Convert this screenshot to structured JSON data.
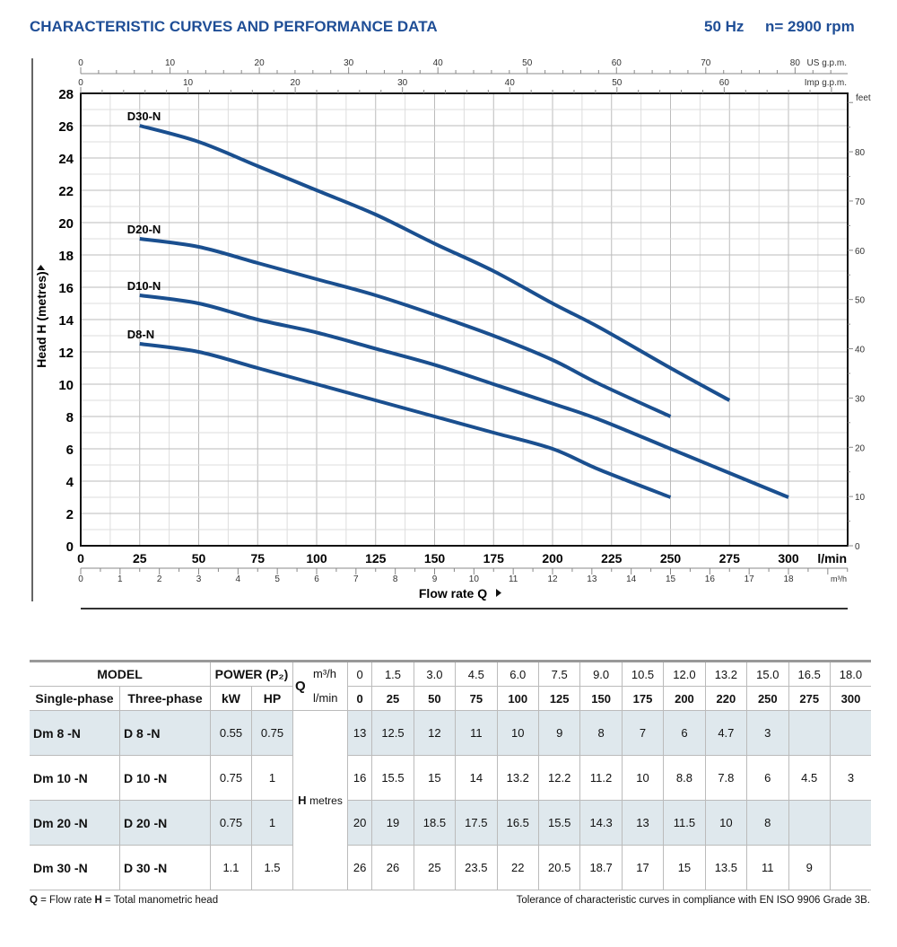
{
  "header": {
    "title": "CHARACTERISTIC CURVES AND PERFORMANCE DATA",
    "freq": "50 Hz",
    "speed": "n= 2900 rpm"
  },
  "chart_data": {
    "type": "line",
    "xlabel": "Flow rate Q",
    "ylabel": "Head H  (metres)",
    "x_unit": "l/min",
    "x2_unit": "m³/h",
    "top_unit1": "US g.p.m.",
    "top_unit2": "Imp g.p.m.",
    "right_unit": "feet",
    "xlim": [
      0,
      325
    ],
    "ylim": [
      0,
      28
    ],
    "x_ticks": [
      0,
      25,
      50,
      75,
      100,
      125,
      150,
      175,
      200,
      225,
      250,
      275,
      300
    ],
    "y_ticks": [
      0,
      2,
      4,
      6,
      8,
      10,
      12,
      14,
      16,
      18,
      20,
      22,
      24,
      26,
      28
    ],
    "m3h_ticks": [
      0,
      1,
      2,
      3,
      4,
      5,
      6,
      7,
      8,
      9,
      10,
      11,
      12,
      13,
      14,
      15,
      16,
      17,
      18
    ],
    "usgpm_ticks": [
      0,
      10,
      20,
      30,
      40,
      50,
      60,
      70,
      80
    ],
    "impgpm_ticks": [
      0,
      10,
      20,
      30,
      40,
      50,
      60
    ],
    "feet_ticks": [
      0,
      10,
      20,
      30,
      40,
      50,
      60,
      70,
      80
    ],
    "grid": true,
    "series": [
      {
        "name": "D30-N",
        "x": [
          25,
          50,
          75,
          100,
          125,
          150,
          175,
          200,
          220,
          250,
          275
        ],
        "y": [
          26,
          25,
          23.5,
          22,
          20.5,
          18.7,
          17,
          15,
          13.5,
          11,
          9
        ]
      },
      {
        "name": "D20-N",
        "x": [
          25,
          50,
          75,
          100,
          125,
          150,
          175,
          200,
          220,
          250
        ],
        "y": [
          19,
          18.5,
          17.5,
          16.5,
          15.5,
          14.3,
          13,
          11.5,
          10,
          8
        ]
      },
      {
        "name": "D10-N",
        "x": [
          25,
          50,
          75,
          100,
          125,
          150,
          175,
          200,
          220,
          250,
          275,
          300
        ],
        "y": [
          15.5,
          15,
          14,
          13.2,
          12.2,
          11.2,
          10,
          8.8,
          7.8,
          6,
          4.5,
          3
        ]
      },
      {
        "name": "D8-N",
        "x": [
          25,
          50,
          75,
          100,
          125,
          150,
          175,
          200,
          220,
          250
        ],
        "y": [
          12.5,
          12,
          11,
          10,
          9,
          8,
          7,
          6,
          4.7,
          3
        ]
      }
    ],
    "line_color": "#1a4f8f"
  },
  "table": {
    "model": "MODEL",
    "power": "POWER (P₂)",
    "single": "Single-phase",
    "three": "Three-phase",
    "kw": "kW",
    "hp": "HP",
    "q": "Q",
    "m3h": "m³/h",
    "lmin": "l/min",
    "h": "H",
    "metres": "metres",
    "m3h_values": [
      "0",
      "1.5",
      "3.0",
      "4.5",
      "6.0",
      "7.5",
      "9.0",
      "10.5",
      "12.0",
      "13.2",
      "15.0",
      "16.5",
      "18.0"
    ],
    "lmin_values": [
      "0",
      "25",
      "50",
      "75",
      "100",
      "125",
      "150",
      "175",
      "200",
      "220",
      "250",
      "275",
      "300"
    ],
    "rows": [
      {
        "single": "Dm 8   -N",
        "three": "D 8   -N",
        "kw": "0.55",
        "hp": "0.75",
        "h": [
          "13",
          "12.5",
          "12",
          "11",
          "10",
          "9",
          "8",
          "7",
          "6",
          "4.7",
          "3",
          "",
          ""
        ]
      },
      {
        "single": "Dm 10 -N",
        "three": "D 10 -N",
        "kw": "0.75",
        "hp": "1",
        "h": [
          "16",
          "15.5",
          "15",
          "14",
          "13.2",
          "12.2",
          "11.2",
          "10",
          "8.8",
          "7.8",
          "6",
          "4.5",
          "3"
        ]
      },
      {
        "single": "Dm 20 -N",
        "three": "D 20 -N",
        "kw": "0.75",
        "hp": "1",
        "h": [
          "20",
          "19",
          "18.5",
          "17.5",
          "16.5",
          "15.5",
          "14.3",
          "13",
          "11.5",
          "10",
          "8",
          "",
          ""
        ]
      },
      {
        "single": "Dm 30 -N",
        "three": "D 30 -N",
        "kw": "1.1",
        "hp": "1.5",
        "h": [
          "26",
          "26",
          "25",
          "23.5",
          "22",
          "20.5",
          "18.7",
          "17",
          "15",
          "13.5",
          "11",
          "9",
          ""
        ]
      }
    ]
  },
  "footer": {
    "left_q": "Q",
    "left_q_text": " = Flow rate  ",
    "left_h": "H",
    "left_h_text": " = Total manometric head",
    "right": "Tolerance of characteristic curves in compliance with EN ISO 9906 Grade 3B."
  }
}
